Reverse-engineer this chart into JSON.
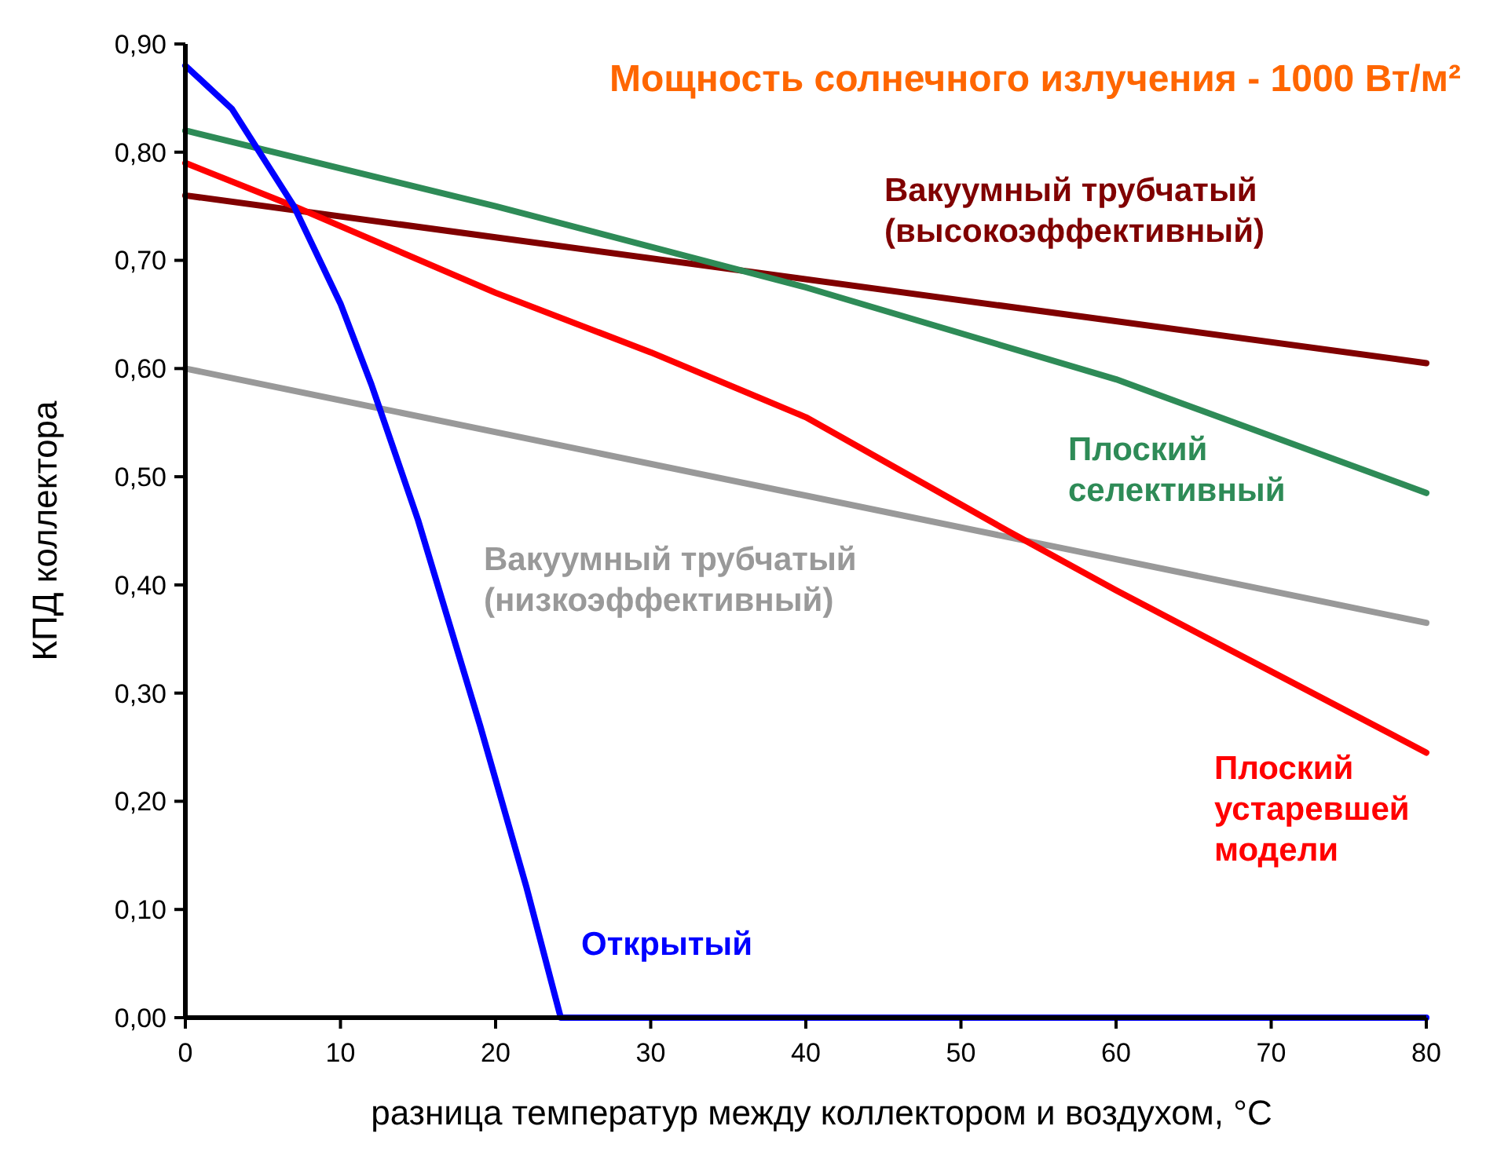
{
  "chart_data": {
    "type": "line",
    "title": "Мощность солнечного излучения - 1000 Вт/м²",
    "xlabel": "разница температур между коллектором и воздухом, °C",
    "ylabel": "КПД коллектора",
    "xlim": [
      0,
      80
    ],
    "xticks": [
      0,
      10,
      20,
      30,
      40,
      50,
      60,
      70,
      80
    ],
    "ylim": [
      0,
      0.9
    ],
    "yticks": [
      {
        "value": 0,
        "label": "0,00"
      },
      {
        "value": 0.1,
        "label": "0,10"
      },
      {
        "value": 0.2,
        "label": "0,20"
      },
      {
        "value": 0.3,
        "label": "0,30"
      },
      {
        "value": 0.4,
        "label": "0,40"
      },
      {
        "value": 0.5,
        "label": "0,50"
      },
      {
        "value": 0.6,
        "label": "0,60"
      },
      {
        "value": 0.7,
        "label": "0,70"
      },
      {
        "value": 0.8,
        "label": "0,80"
      },
      {
        "value": 0.9,
        "label": "0,90"
      }
    ],
    "grid": false,
    "line_style": "solid",
    "series": [
      {
        "name": "Вакуумный трубчатый\n(высокоэффективный)",
        "color": "#800000",
        "x": [
          0,
          80
        ],
        "values": [
          0.76,
          0.605
        ]
      },
      {
        "name": "Плоский\nселективный",
        "color": "#2e8b57",
        "x": [
          0,
          20,
          40,
          60,
          80
        ],
        "values": [
          0.82,
          0.75,
          0.675,
          0.59,
          0.485
        ]
      },
      {
        "name": "Вакуумный трубчатый\n(низкоэффективный)",
        "color": "#999999",
        "x": [
          0,
          80
        ],
        "values": [
          0.6,
          0.365
        ]
      },
      {
        "name": "Плоский\nустаревшей\nмодели",
        "color": "#ff0000",
        "x": [
          0,
          7,
          20,
          30,
          40,
          53,
          60,
          70,
          80
        ],
        "values": [
          0.79,
          0.75,
          0.67,
          0.615,
          0.555,
          0.45,
          0.395,
          0.32,
          0.245
        ]
      },
      {
        "name": "Открытый",
        "color": "#0000ff",
        "x": [
          0,
          3,
          7,
          10,
          12,
          15,
          19,
          22,
          24.2,
          80
        ],
        "values": [
          0.88,
          0.84,
          0.75,
          0.66,
          0.585,
          0.46,
          0.27,
          0.12,
          0,
          0
        ]
      }
    ]
  }
}
